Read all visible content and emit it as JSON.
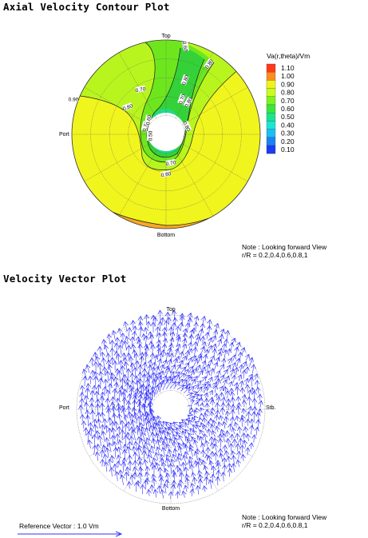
{
  "titles": {
    "contour": "Axial Velocity Contour Plot",
    "vector": "Velocity Vector Plot"
  },
  "contour_plot": {
    "orientation_labels": {
      "top": "Top",
      "bottom": "Bottom",
      "port": "Port"
    },
    "note_line1": "Note : Looking forward View",
    "note_line2": "r/R = 0.2,0.4,0.6,0.8,1",
    "legend": {
      "title": "Va(r,theta)/Vm",
      "levels": [
        "1.10",
        "1.00",
        "0.90",
        "0.80",
        "0.70",
        "0.60",
        "0.50",
        "0.40",
        "0.30",
        "0.20",
        "0.10"
      ],
      "colors": [
        "#ff3a1a",
        "#ff8c1a",
        "#f2f21a",
        "#c8ff1a",
        "#7bf51a",
        "#3ce63c",
        "#1ae68c",
        "#1ae6d2",
        "#1abef5",
        "#1a82f5",
        "#1a3cf5"
      ]
    },
    "contour_labels": [
      "0.90",
      "0.80",
      "0.70",
      "0.60",
      "0.80",
      "0.80",
      "0.70",
      "0.80",
      "0.60",
      "0.70",
      "0.50",
      "0.80",
      "0.70",
      "0.80"
    ]
  },
  "vector_plot": {
    "orientation_labels": {
      "top": "Top",
      "bottom": "Bottom",
      "port": "Port",
      "stb": "Stb."
    },
    "note_line1": "Note : Looking forward View",
    "note_line2": "r/R = 0.2,0.4,0.6,0.8,1",
    "reference_label": "Reference Vector : 1.0 Vm"
  },
  "chart_data": [
    {
      "type": "heatmap",
      "title": "Axial Velocity Contour Plot",
      "variable": "Va(r,theta)/Vm",
      "coordinate_system": "polar",
      "radii_r_over_R": [
        0.2,
        0.4,
        0.6,
        0.8,
        1.0
      ],
      "contour_levels": [
        0.1,
        0.2,
        0.3,
        0.4,
        0.5,
        0.6,
        0.7,
        0.8,
        0.9,
        1.0,
        1.1
      ],
      "regions": [
        {
          "level_range": [
            0.9,
            1.0
          ],
          "location": "most of disc: starboard side and lower half"
        },
        {
          "level_range": [
            1.0,
            1.1
          ],
          "location": "thin band along bottom edge"
        },
        {
          "level_range": [
            0.8,
            0.9
          ],
          "location": "upper port side and wake band near Top"
        },
        {
          "level_range": [
            0.7,
            0.8
          ],
          "location": "wake band from Top toward hub"
        },
        {
          "level_range": [
            0.6,
            0.7
          ],
          "location": "near hub, upper side"
        },
        {
          "level_range": [
            0.5,
            0.6
          ],
          "location": "immediately around hub"
        }
      ],
      "view": "Looking forward"
    },
    {
      "type": "scatter",
      "title": "Velocity Vector Plot",
      "variable": "in-plane velocity vectors",
      "coordinate_system": "polar",
      "radii_r_over_R": [
        0.2,
        0.4,
        0.6,
        0.8,
        1.0
      ],
      "flow_pattern": "predominantly upward on both sides, swirl around hub",
      "reference_vector": "1.0 Vm",
      "view": "Looking forward"
    }
  ]
}
